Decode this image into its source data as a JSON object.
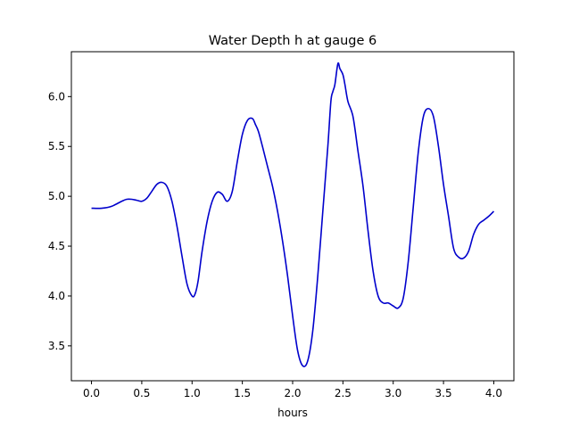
{
  "chart_data": {
    "type": "line",
    "title": "Water Depth h at gauge 6",
    "xlabel": "hours",
    "ylabel": "",
    "xlim": [
      -0.2,
      4.2
    ],
    "ylim": [
      3.15,
      6.45
    ],
    "xticks": [
      "0.0",
      "0.5",
      "1.0",
      "1.5",
      "2.0",
      "2.5",
      "3.0",
      "3.5",
      "4.0"
    ],
    "yticks": [
      "3.5",
      "4.0",
      "4.5",
      "5.0",
      "5.5",
      "6.0"
    ],
    "grid": false,
    "legend": "none",
    "series": [
      {
        "color": "#0000cc",
        "x": [
          0.0,
          0.1,
          0.2,
          0.3,
          0.35,
          0.4,
          0.45,
          0.5,
          0.55,
          0.6,
          0.65,
          0.7,
          0.75,
          0.8,
          0.85,
          0.9,
          0.95,
          1.0,
          1.03,
          1.06,
          1.1,
          1.15,
          1.2,
          1.25,
          1.3,
          1.35,
          1.4,
          1.45,
          1.5,
          1.55,
          1.6,
          1.63,
          1.66,
          1.7,
          1.75,
          1.8,
          1.85,
          1.9,
          1.95,
          2.0,
          2.05,
          2.1,
          2.15,
          2.2,
          2.25,
          2.3,
          2.35,
          2.38,
          2.4,
          2.42,
          2.45,
          2.47,
          2.5,
          2.52,
          2.55,
          2.6,
          2.65,
          2.7,
          2.75,
          2.8,
          2.85,
          2.9,
          2.95,
          3.0,
          3.05,
          3.1,
          3.15,
          3.2,
          3.25,
          3.3,
          3.35,
          3.4,
          3.45,
          3.5,
          3.55,
          3.6,
          3.65,
          3.7,
          3.75,
          3.8,
          3.85,
          3.9,
          3.95,
          4.0
        ],
        "y": [
          4.88,
          4.88,
          4.9,
          4.95,
          4.97,
          4.97,
          4.96,
          4.95,
          4.98,
          5.05,
          5.12,
          5.14,
          5.1,
          4.95,
          4.7,
          4.4,
          4.12,
          4.0,
          4.02,
          4.15,
          4.45,
          4.75,
          4.95,
          5.04,
          5.02,
          4.95,
          5.05,
          5.35,
          5.62,
          5.76,
          5.78,
          5.72,
          5.65,
          5.5,
          5.3,
          5.1,
          4.85,
          4.55,
          4.2,
          3.8,
          3.45,
          3.3,
          3.35,
          3.65,
          4.2,
          4.85,
          5.5,
          5.95,
          6.05,
          6.12,
          6.33,
          6.28,
          6.22,
          6.12,
          5.95,
          5.8,
          5.45,
          5.1,
          4.65,
          4.25,
          4.0,
          3.93,
          3.93,
          3.9,
          3.88,
          3.98,
          4.35,
          4.9,
          5.45,
          5.8,
          5.88,
          5.8,
          5.5,
          5.12,
          4.8,
          4.48,
          4.39,
          4.38,
          4.45,
          4.62,
          4.72,
          4.76,
          4.8,
          4.85
        ]
      }
    ]
  }
}
